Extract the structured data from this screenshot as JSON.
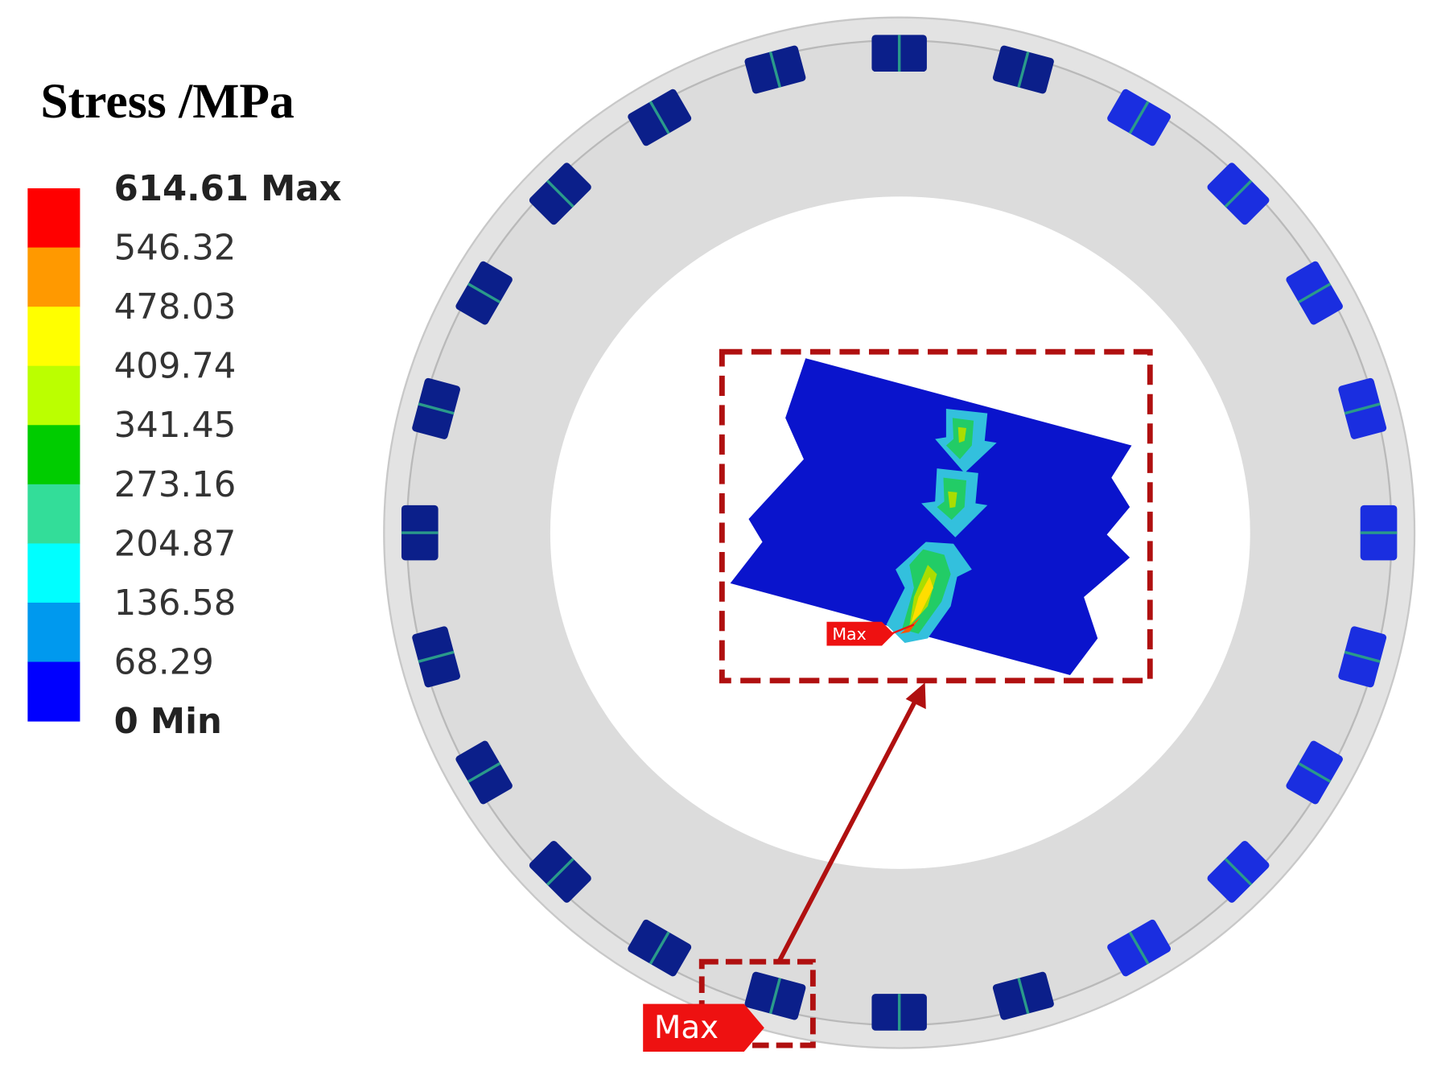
{
  "legend": {
    "title": "Stress /MPa",
    "labels": [
      "614.61 Max",
      "546.32",
      "478.03",
      "409.74",
      "341.45",
      "273.16",
      "204.87",
      "136.58",
      "68.29",
      "0 Min"
    ]
  },
  "inset": {
    "max_tag": "Max"
  },
  "max_tag": "Max"
}
